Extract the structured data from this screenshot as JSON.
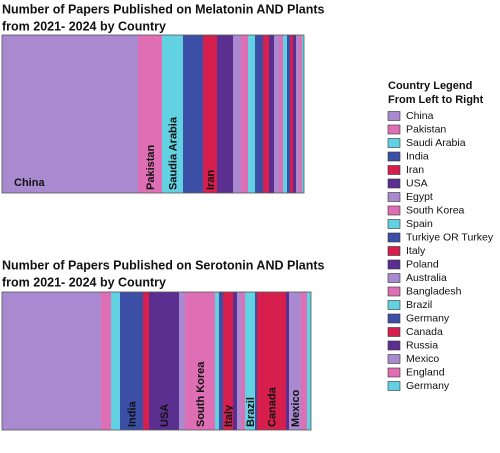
{
  "chart_data": [
    {
      "type": "stacked_bar",
      "title": [
        "Number of Papers Published on Melatonin AND Plants",
        "from 2021- 2024 by Country"
      ],
      "categories": [
        "China",
        "Pakistan",
        "Saudia Arabia",
        "India",
        "Iran",
        "USA",
        "Egypt",
        "South Korea",
        "Spain",
        "Turkiye OR Turkey",
        "Italy",
        "Poland",
        "Australia",
        "Bangladesh",
        "Brazil",
        "Germany",
        "Canada",
        "Russia",
        "Mexico",
        "England",
        "Germany"
      ],
      "values": [
        136,
        24,
        21,
        20,
        14,
        16,
        8,
        7,
        7,
        8,
        6,
        5,
        5,
        4,
        4,
        3,
        3,
        3,
        3,
        3,
        2
      ],
      "colors": [
        "#a98ad0",
        "#de6fb4",
        "#62d2e2",
        "#3b4fa6",
        "#d61f4d",
        "#5b2f90",
        "#a98ad0",
        "#de6fb4",
        "#62d2e2",
        "#3b4fa6",
        "#d61f4d",
        "#5b2f90",
        "#a98ad0",
        "#de6fb4",
        "#62d2e2",
        "#3b4fa6",
        "#d61f4d",
        "#5b2f90",
        "#a98ad0",
        "#de6fb4",
        "#62d2e2"
      ]
    },
    {
      "type": "stacked_bar",
      "title": [
        "Number of Papers Published on Serotonin AND Plants",
        "from 2021- 2024 by Country"
      ],
      "categories": [
        "China",
        "Pakistan",
        "Saudi Arabia",
        "India",
        "Iran",
        "USA",
        "Egypt",
        "South Korea",
        "Spain",
        "Turkiye OR Turkey",
        "Italy",
        "Poland",
        "Australia",
        "Bangladesh",
        "Brazil",
        "Germany",
        "Canada",
        "Russia",
        "Mexico",
        "England",
        "Germany"
      ],
      "values": [
        99,
        10,
        9,
        23,
        6,
        30,
        6,
        30,
        4,
        4,
        10,
        4,
        4,
        4,
        10,
        2,
        29,
        3,
        12,
        6,
        4
      ],
      "colors": [
        "#a98ad0",
        "#de6fb4",
        "#62d2e2",
        "#3b4fa6",
        "#d61f4d",
        "#5b2f90",
        "#a98ad0",
        "#de6fb4",
        "#62d2e2",
        "#3b4fa6",
        "#d61f4d",
        "#5b2f90",
        "#a98ad0",
        "#de6fb4",
        "#62d2e2",
        "#3b4fa6",
        "#d61f4d",
        "#5b2f90",
        "#a98ad0",
        "#de6fb4",
        "#62d2e2"
      ]
    }
  ],
  "legend": {
    "title": [
      "Country Legend",
      "From Left to Right"
    ],
    "entries": [
      "China",
      "Pakistan",
      "Saudi Arabia",
      "India",
      "Iran",
      "USA",
      "Egypt",
      "South Korea",
      "Spain",
      "Turkiye OR Turkey",
      "Italy",
      "Poland",
      "Australia",
      "Bangladesh",
      "Brazil",
      "Germany",
      "Canada",
      "Russia",
      "Mexico",
      "England",
      "Germany"
    ]
  }
}
